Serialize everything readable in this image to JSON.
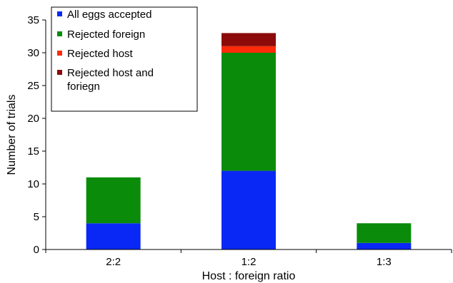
{
  "chart_data": {
    "type": "bar",
    "stacked": true,
    "categories": [
      "2:2",
      "1:2",
      "1:3"
    ],
    "series": [
      {
        "name": "All eggs accepted",
        "color": "#0a28f5",
        "values": [
          4,
          12,
          1
        ]
      },
      {
        "name": "Rejected foreign",
        "color": "#0a8c0a",
        "values": [
          7,
          18,
          3
        ]
      },
      {
        "name": "Rejected host",
        "color": "#ff2a0a",
        "values": [
          0,
          1,
          0
        ]
      },
      {
        "name": "Rejected host and foriegn",
        "name_lines": [
          "Rejected host and",
          "foriegn"
        ],
        "color": "#8c0a0a",
        "values": [
          0,
          2,
          0
        ]
      }
    ],
    "xlabel": "Host : foreign ratio",
    "ylabel": "Number of trials",
    "ylim": [
      0,
      35
    ],
    "yticks": [
      0,
      5,
      10,
      15,
      20,
      25,
      30,
      35
    ],
    "grid": false,
    "legend_position": "top-left"
  }
}
